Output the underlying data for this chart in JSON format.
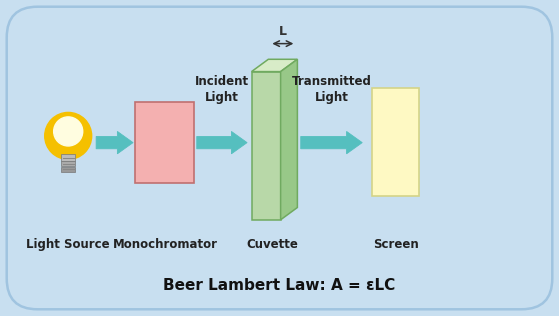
{
  "bg_color": "#c8dff0",
  "border_color": "#a0c4e0",
  "title_text": "Beer Lambert Law: A = εLC",
  "title_fontsize": 11,
  "monochromator_color": "#f4b0b0",
  "monochromator_edge": "#c07070",
  "screen_color": "#fef9c3",
  "screen_edge": "#d4d488",
  "cuvette_face_color": "#b8d8a8",
  "cuvette_edge_color": "#70aa60",
  "cuvette_top_color": "#d8ecc8",
  "cuvette_side_color": "#98c888",
  "arrow_color": "#55bfbf",
  "arrow_edge": "#40a0a0",
  "label_color": "#222222",
  "label_fontsize": 8.5,
  "sub_label_fontsize": 8,
  "L_label": "L",
  "incident_label": "Incident\nLight",
  "transmitted_label": "Transmitted\nLight",
  "light_source_label": "Light Source",
  "monochromator_label": "Monochromator",
  "cuvette_label": "Cuvette",
  "screen_label": "Screen",
  "xlim": [
    0,
    10
  ],
  "ylim": [
    0,
    5.65
  ]
}
